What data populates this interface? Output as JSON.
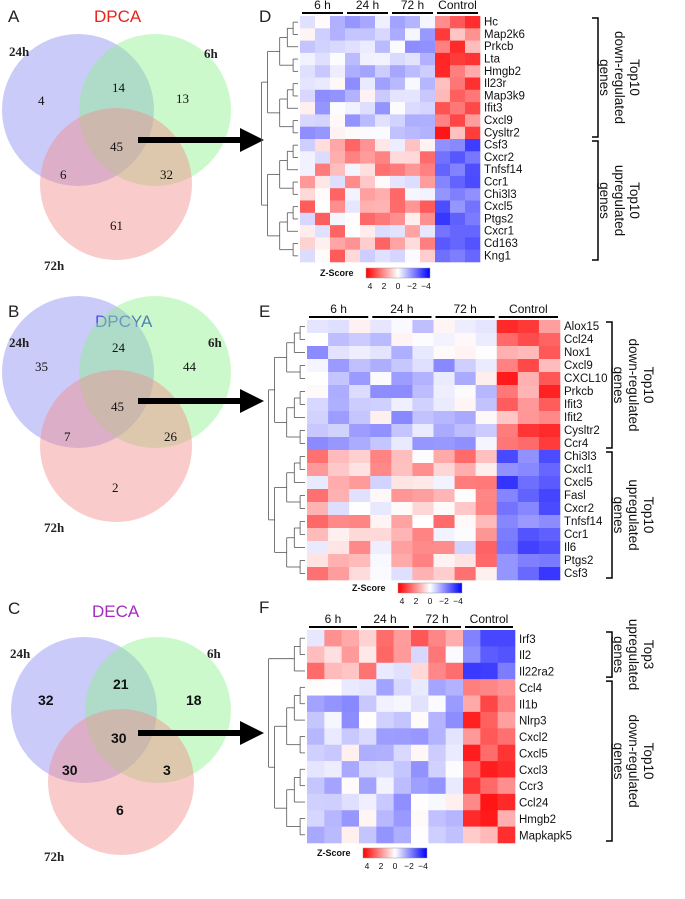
{
  "panels": {
    "A": {
      "label": "A",
      "title": "DPCA",
      "title_color": "#e8231c",
      "sets": [
        "24h",
        "6h",
        "72h"
      ],
      "counts": {
        "only24": "4",
        "s24_6": "14",
        "only6": "13",
        "center": "45",
        "s24_72": "6",
        "s6_72": "32",
        "only72": "61"
      }
    },
    "B": {
      "label": "B",
      "title": "DPCYA",
      "title_color": "#2222d8",
      "sets": [
        "24h",
        "6h",
        "72h"
      ],
      "counts": {
        "only24": "35",
        "s24_6": "24",
        "only6": "44",
        "center": "45",
        "s24_72": "7",
        "s6_72": "26",
        "only72": "2"
      }
    },
    "C": {
      "label": "C",
      "title": "DECA",
      "title_color": "#a42bbd",
      "sets": [
        "24h",
        "6h",
        "72h"
      ],
      "counts": {
        "only24": "32",
        "s24_6": "21",
        "only6": "18",
        "center": "30",
        "s24_72": "30",
        "s6_72": "3",
        "only72": "6"
      }
    },
    "D": {
      "label": "D",
      "groups": [
        "6 h",
        "24 h",
        "72 h",
        "Control"
      ],
      "genes": [
        "Hc",
        "Map2k6",
        "Prkcb",
        "Lta",
        "Hmgb2",
        "Il23r",
        "Map3k9",
        "Ifit3",
        "Cxcl9",
        "Cysltr2",
        "Csf3",
        "Cxcr2",
        "Tnfsf14",
        "Ccr1",
        "Chi3l3",
        "Cxcl5",
        "Ptgs2",
        "Cxcr1",
        "Cd163",
        "Kng1"
      ],
      "brackets": [
        {
          "line1": "Top10",
          "line2": "down-regulated",
          "line3": "genes"
        },
        {
          "line1": "Top10",
          "line2": "upregulated",
          "line3": "genes"
        }
      ]
    },
    "E": {
      "label": "E",
      "groups": [
        "6 h",
        "24 h",
        "72 h",
        "Control"
      ],
      "genes": [
        "Alox15",
        "Ccl24",
        "Nox1",
        "Cxcl9",
        "CXCL10",
        "Prkcb",
        "Ifit3",
        "Ifit2",
        "Cysltr2",
        "Ccr4",
        "Chi3l3",
        "Cxcl1",
        "Cxcl5",
        "Fasl",
        "Cxcr2",
        "Tnfsf14",
        "Ccr1",
        "Il6",
        "Ptgs2",
        "Csf3"
      ],
      "brackets": [
        {
          "line1": "Top10",
          "line2": "down-regulated",
          "line3": "genes"
        },
        {
          "line1": "Top10",
          "line2": "upregulated",
          "line3": "genes"
        }
      ]
    },
    "F": {
      "label": "F",
      "groups": [
        "6 h",
        "24 h",
        "72 h",
        "Control"
      ],
      "genes": [
        "Irf3",
        "Il2",
        "Il22ra2",
        "Ccl4",
        "Il1b",
        "Nlrp3",
        "Cxcl2",
        "Cxcl5",
        "Cxcl3",
        "Ccr3",
        "Ccl24",
        "Hmgb2",
        "Mapkapk5"
      ],
      "brackets": [
        {
          "line1": "Top3",
          "line2": "upregulated",
          "line3": "genes"
        },
        {
          "line1": "Top10",
          "line2": "down-regulated",
          "line3": "genes"
        }
      ]
    }
  },
  "zscore": {
    "label": "Z-Score",
    "ticks": [
      "4",
      "2",
      "0",
      "−2",
      "−4"
    ]
  },
  "colors": {
    "set24": "#8c8cf2",
    "set6": "#8ef28c",
    "set72": "#f28c8c",
    "hot": "#ff0000",
    "mid": "#ffffff",
    "cold": "#0000ff"
  }
}
